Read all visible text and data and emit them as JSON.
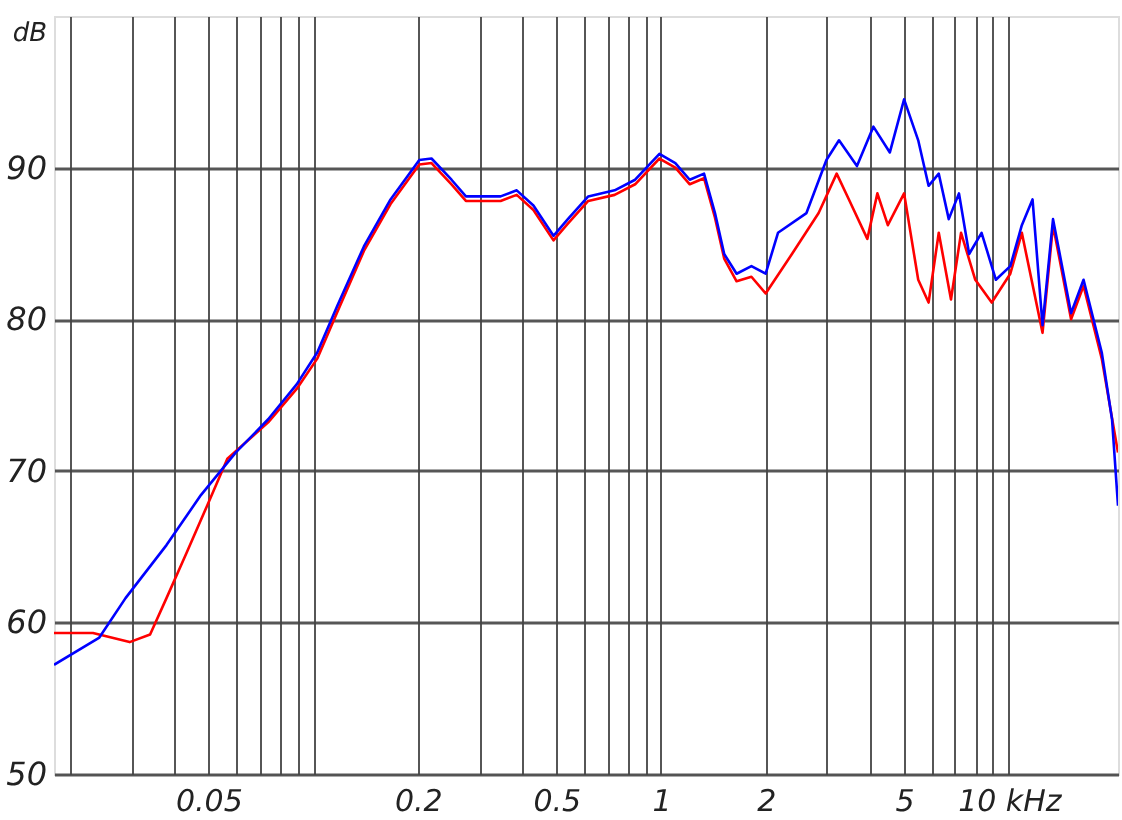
{
  "chart_data": {
    "type": "line",
    "xlabel": null,
    "ylabel": "dB",
    "log": "x",
    "grid": true,
    "marker": "none",
    "line_style": "solid",
    "xlim": [
      0.018,
      20.6
    ],
    "ylim": [
      50,
      100
    ],
    "xticks": [
      {
        "value": 0.02,
        "label": null
      },
      {
        "value": 0.03,
        "label": null
      },
      {
        "value": 0.04,
        "label": null
      },
      0.05,
      {
        "value": 0.06,
        "label": null
      },
      {
        "value": 0.07,
        "label": null
      },
      {
        "value": 0.08,
        "label": null
      },
      {
        "value": 0.09,
        "label": null
      },
      {
        "value": 0.1,
        "label": null
      },
      0.2,
      {
        "value": 0.3,
        "label": null
      },
      {
        "value": 0.4,
        "label": null
      },
      0.5,
      {
        "value": 0.6,
        "label": null
      },
      {
        "value": 0.7,
        "label": null
      },
      {
        "value": 0.8,
        "label": null
      },
      {
        "value": 0.9,
        "label": null
      },
      1,
      2,
      {
        "value": 3,
        "label": null
      },
      {
        "value": 4,
        "label": null
      },
      5,
      {
        "value": 6,
        "label": null
      },
      {
        "value": 7,
        "label": null
      },
      {
        "value": 8,
        "label": null
      },
      {
        "value": 9,
        "label": null
      },
      {
        "value": 10,
        "label": "10 kHz"
      }
    ],
    "yticks": [
      50,
      60,
      70,
      80,
      90
    ],
    "series": [
      {
        "color": "#ff0000",
        "x": [
          0.018,
          0.0233,
          0.0297,
          0.034,
          0.0379,
          0.0433,
          0.0496,
          0.0567,
          0.0743,
          0.0897,
          0.1028,
          0.1175,
          0.14,
          0.167,
          0.202,
          0.219,
          0.25,
          0.275,
          0.346,
          0.385,
          0.43,
          0.491,
          0.54,
          0.618,
          0.736,
          0.843,
          0.99,
          1.1,
          1.21,
          1.33,
          1.43,
          1.52,
          1.65,
          1.82,
          2.0,
          2.38,
          2.84,
          3.2,
          3.47,
          3.92,
          4.19,
          4.49,
          5.0,
          5.49,
          5.88,
          6.29,
          6.82,
          7.29,
          8.01,
          8.93,
          10.1,
          10.9,
          12.5,
          13.4,
          15.1,
          16.4,
          18.5,
          20.6
        ],
        "values": [
          59.3,
          59.3,
          58.7,
          59.2,
          61.6,
          64.6,
          67.7,
          70.8,
          73.2,
          75.4,
          77.4,
          80.5,
          84.5,
          87.6,
          90.2,
          90.3,
          88.9,
          87.8,
          87.8,
          88.2,
          87.2,
          85.2,
          86.3,
          87.8,
          88.2,
          88.9,
          90.6,
          90,
          88.9,
          89.3,
          86.7,
          84,
          82.5,
          82.8,
          81.7,
          84.3,
          87,
          89.6,
          87.9,
          85.3,
          88.3,
          86.2,
          88.3,
          82.6,
          81.1,
          85.7,
          81.3,
          85.7,
          82.6,
          81.1,
          83,
          85.7,
          79.1,
          86.2,
          80,
          82.2,
          77.4,
          71.2
        ]
      },
      {
        "color": "#0000ff",
        "x": [
          0.018,
          0.0243,
          0.0289,
          0.0379,
          0.0476,
          0.0599,
          0.0743,
          0.0897,
          0.1028,
          0.1175,
          0.14,
          0.167,
          0.202,
          0.219,
          0.25,
          0.275,
          0.346,
          0.385,
          0.43,
          0.491,
          0.54,
          0.618,
          0.736,
          0.843,
          0.99,
          1.1,
          1.21,
          1.33,
          1.43,
          1.52,
          1.65,
          1.82,
          2.0,
          2.17,
          2.62,
          2.99,
          3.25,
          3.66,
          4.08,
          4.55,
          5.0,
          5.49,
          5.88,
          6.29,
          6.72,
          7.19,
          7.69,
          8.35,
          9.18,
          10.1,
          10.9,
          11.7,
          12.5,
          13.4,
          15.1,
          16.4,
          18.5,
          19.8,
          20.6
        ],
        "values": [
          57.2,
          59,
          61.6,
          65.1,
          68.4,
          71.2,
          73.4,
          75.7,
          77.8,
          80.9,
          84.8,
          87.9,
          90.5,
          90.6,
          89.2,
          88.1,
          88.1,
          88.5,
          87.5,
          85.5,
          86.6,
          88.1,
          88.5,
          89.2,
          90.9,
          90.3,
          89.2,
          89.6,
          87,
          84.3,
          83,
          83.5,
          83,
          85.7,
          87,
          90.5,
          91.8,
          90.1,
          92.7,
          91,
          94.5,
          91.8,
          88.8,
          89.6,
          86.6,
          88.3,
          84.3,
          85.7,
          82.6,
          83.5,
          86.2,
          87.9,
          79.6,
          86.6,
          80.4,
          82.6,
          77.8,
          73.4,
          67.7
        ]
      }
    ]
  }
}
